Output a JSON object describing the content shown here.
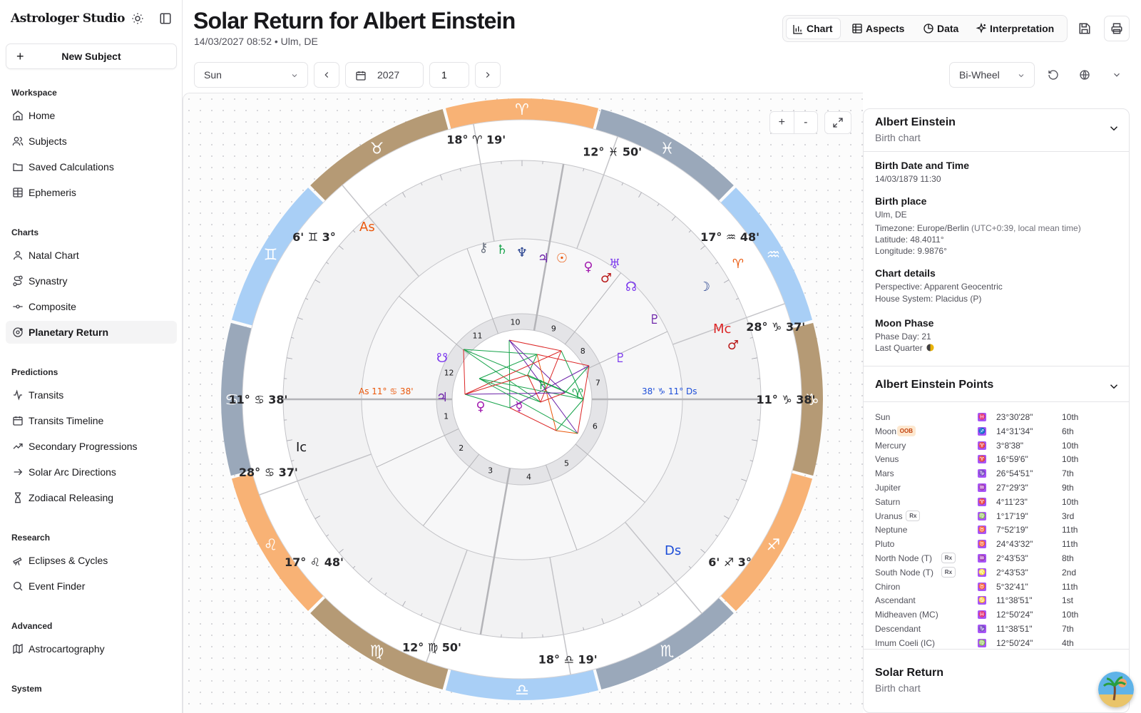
{
  "app": {
    "name": "Astrologer Studio"
  },
  "sidebar": {
    "new_subject_label": "New Subject",
    "groups": [
      {
        "title": "Workspace",
        "items": [
          "Home",
          "Subjects",
          "Saved Calculations",
          "Ephemeris"
        ]
      },
      {
        "title": "Charts",
        "items": [
          "Natal Chart",
          "Synastry",
          "Composite",
          "Planetary Return"
        ]
      },
      {
        "title": "Predictions",
        "items": [
          "Transits",
          "Transits Timeline",
          "Secondary Progressions",
          "Solar Arc Directions",
          "Zodiacal Releasing"
        ]
      },
      {
        "title": "Research",
        "items": [
          "Eclipses & Cycles",
          "Event Finder"
        ]
      },
      {
        "title": "Advanced",
        "items": [
          "Astrocartography"
        ]
      },
      {
        "title": "System",
        "items": []
      }
    ],
    "active_item": "Planetary Return"
  },
  "header": {
    "title": "Solar Return for Albert Einstein",
    "subtitle": "14/03/2027 08:52 • Ulm, DE",
    "tabs": [
      "Chart",
      "Aspects",
      "Data",
      "Interpretation"
    ],
    "active_tab": "Chart"
  },
  "toolbar": {
    "planet_select": "Sun",
    "year": "2027",
    "count": "1",
    "wheel_select": "Bi-Wheel"
  },
  "zoom": {
    "in": "+",
    "out": "-"
  },
  "chart": {
    "signs": [
      {
        "name": "Aries",
        "glyph": "♈",
        "color": "#f8b275"
      },
      {
        "name": "Taurus",
        "glyph": "♉",
        "color": "#b59a75"
      },
      {
        "name": "Gemini",
        "glyph": "♊",
        "color": "#a9cff6"
      },
      {
        "name": "Cancer",
        "glyph": "♋",
        "color": "#9aa8ba"
      },
      {
        "name": "Leo",
        "glyph": "♌",
        "color": "#f8b275"
      },
      {
        "name": "Virgo",
        "glyph": "♍",
        "color": "#b59a75"
      },
      {
        "name": "Libra",
        "glyph": "♎",
        "color": "#a9cff6"
      },
      {
        "name": "Scorpio",
        "glyph": "♏",
        "color": "#9aa8ba"
      },
      {
        "name": "Sagittarius",
        "glyph": "♐",
        "color": "#f8b275"
      },
      {
        "name": "Capricorn",
        "glyph": "♑",
        "color": "#b59a75"
      },
      {
        "name": "Aquarius",
        "glyph": "♒",
        "color": "#a9cff6"
      },
      {
        "name": "Pisces",
        "glyph": "♓",
        "color": "#9aa8ba"
      }
    ],
    "house_numbers": [
      "1",
      "2",
      "3",
      "4",
      "5",
      "6",
      "7",
      "8",
      "9",
      "10",
      "11",
      "12"
    ],
    "outer_cusps": [
      {
        "deg": "18°",
        "min": "19'",
        "glyph": "♈"
      },
      {
        "deg": "12°",
        "min": "50'",
        "glyph": "♓"
      },
      {
        "deg": "17°",
        "min": "48'",
        "glyph": "♒"
      },
      {
        "deg": "28°",
        "min": "37'",
        "glyph": "♑"
      },
      {
        "deg": "11°",
        "min": "38'",
        "glyph": "♑"
      },
      {
        "deg": "6'",
        "min": "3°",
        "glyph": "♐"
      },
      {
        "deg": "18°",
        "min": "19'",
        "glyph": "♎"
      },
      {
        "deg": "12°",
        "min": "50'",
        "glyph": "♍"
      },
      {
        "deg": "17°",
        "min": "48'",
        "glyph": "♌"
      },
      {
        "deg": "28°",
        "min": "37'",
        "glyph": "♋"
      },
      {
        "deg": "11°",
        "min": "38'",
        "glyph": "♋"
      },
      {
        "deg": "6'",
        "min": "3°",
        "glyph": "♊"
      }
    ],
    "angle_labels": {
      "as_outer": "As",
      "mc_outer": "Mc",
      "ic_outer": "Ic",
      "ds_outer": "Ds",
      "as_inner": "As 11° ♋ 38'",
      "ds_inner": "38' ♑ 11° Ds"
    }
  },
  "panel": {
    "subject": {
      "name": "Albert Einstein",
      "subtitle": "Birth chart"
    },
    "birth_label": "Birth Date and Time",
    "birth_value": "14/03/1879 11:30",
    "place_label": "Birth place",
    "place_value": "Ulm, DE",
    "timezone_value": "Timezone: Europe/Berlin",
    "timezone_extra": "(UTC+0:39, local mean time)",
    "latitude": "Latitude: 48.4011°",
    "longitude": "Longitude: 9.9876°",
    "details_label": "Chart details",
    "perspective": "Perspective: Apparent Geocentric",
    "house_system": "House System: Placidus (P)",
    "moon_label": "Moon Phase",
    "phase_day": "Phase Day: 21",
    "phase_name": "Last Quarter",
    "points_title": "Albert Einstein Points",
    "points": [
      {
        "name": "Sun",
        "sign": "♓",
        "pos": "23°30'28\"",
        "house": "10th",
        "badge": ""
      },
      {
        "name": "Moon",
        "sign": "♐",
        "pos": "14°31'34\"",
        "house": "6th",
        "badge": "OOB"
      },
      {
        "name": "Mercury",
        "sign": "♈",
        "pos": "3°8'38\"",
        "house": "10th",
        "badge": ""
      },
      {
        "name": "Venus",
        "sign": "♈",
        "pos": "16°59'6\"",
        "house": "10th",
        "badge": ""
      },
      {
        "name": "Mars",
        "sign": "♑",
        "pos": "26°54'51\"",
        "house": "7th",
        "badge": ""
      },
      {
        "name": "Jupiter",
        "sign": "♒",
        "pos": "27°29'3\"",
        "house": "9th",
        "badge": ""
      },
      {
        "name": "Saturn",
        "sign": "♈",
        "pos": "4°11'23\"",
        "house": "10th",
        "badge": ""
      },
      {
        "name": "Uranus",
        "sign": "♍",
        "pos": "1°17'19\"",
        "house": "3rd",
        "badge": "Rx"
      },
      {
        "name": "Neptune",
        "sign": "♉",
        "pos": "7°52'19\"",
        "house": "11th",
        "badge": ""
      },
      {
        "name": "Pluto",
        "sign": "♉",
        "pos": "24°43'32\"",
        "house": "11th",
        "badge": ""
      },
      {
        "name": "North Node (T)",
        "sign": "♒",
        "pos": "2°43'53\"",
        "house": "8th",
        "badge": "Rx"
      },
      {
        "name": "South Node (T)",
        "sign": "♌",
        "pos": "2°43'53\"",
        "house": "2nd",
        "badge": "Rx"
      },
      {
        "name": "Chiron",
        "sign": "♉",
        "pos": "5°32'41\"",
        "house": "11th",
        "badge": ""
      },
      {
        "name": "Ascendant",
        "sign": "♋",
        "pos": "11°38'51\"",
        "house": "1st",
        "badge": ""
      },
      {
        "name": "Midheaven (MC)",
        "sign": "♓",
        "pos": "12°50'24\"",
        "house": "10th",
        "badge": ""
      },
      {
        "name": "Descendant",
        "sign": "♑",
        "pos": "11°38'51\"",
        "house": "7th",
        "badge": ""
      },
      {
        "name": "Imum Coeli (IC)",
        "sign": "♍",
        "pos": "12°50'24\"",
        "house": "4th",
        "badge": ""
      }
    ],
    "return_title": "Solar Return",
    "return_subtitle": "Birth chart"
  },
  "colors": {
    "accent": "#18181b",
    "muted": "#71717a",
    "border": "#e4e4e7",
    "badge_purple": "#a855f7"
  }
}
